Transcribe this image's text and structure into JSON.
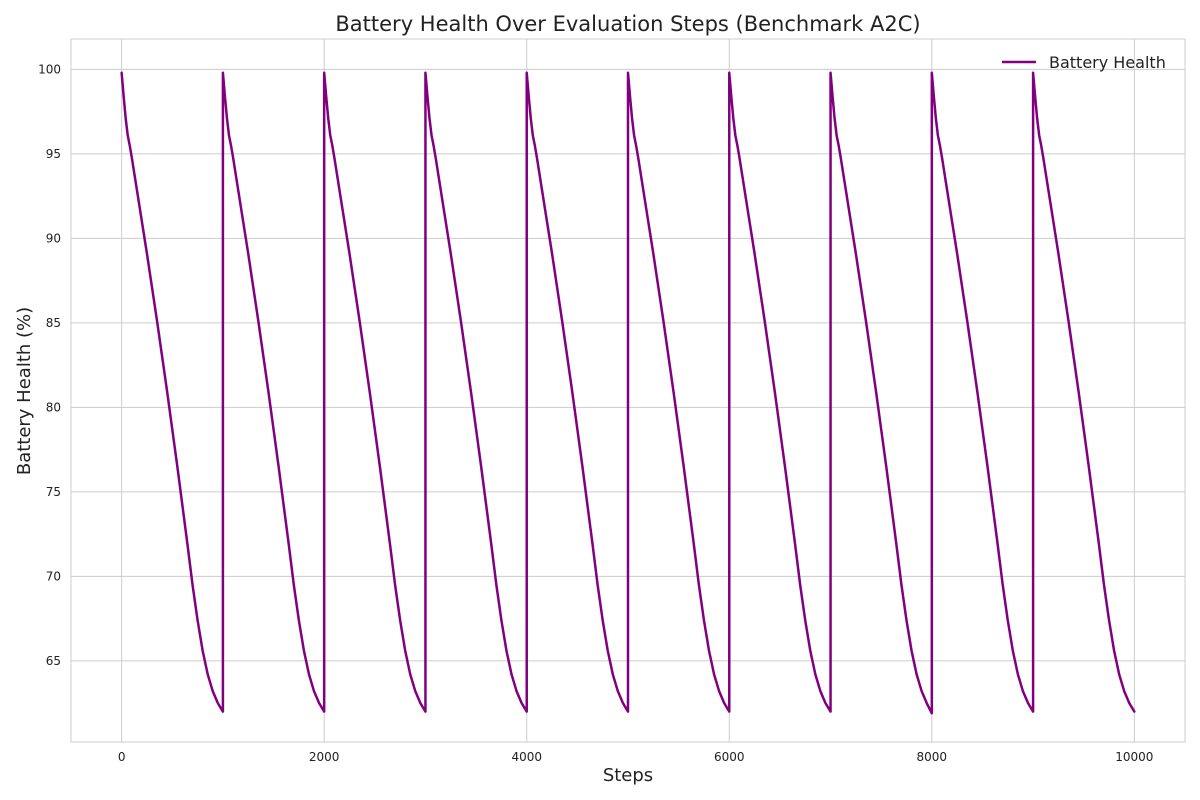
{
  "chart_data": {
    "type": "line",
    "title": "Battery Health Over Evaluation Steps (Benchmark A2C)",
    "xlabel": "Steps",
    "ylabel": "Battery Health (%)",
    "xlim": [
      -500,
      10500
    ],
    "ylim": [
      60.2,
      101.8
    ],
    "xticks": [
      0,
      2000,
      4000,
      6000,
      8000,
      10000
    ],
    "yticks": [
      65,
      70,
      75,
      80,
      85,
      90,
      95,
      100
    ],
    "grid": true,
    "legend_position": "top-right",
    "series": [
      {
        "name": "Battery Health",
        "color": "#800080",
        "x": [
          0,
          20,
          40,
          60,
          80,
          100,
          150,
          200,
          250,
          300,
          350,
          400,
          450,
          500,
          550,
          600,
          650,
          700,
          750,
          800,
          850,
          900,
          950,
          1000,
          1000,
          1020,
          1040,
          1060,
          1080,
          1100,
          1150,
          1200,
          1250,
          1300,
          1350,
          1400,
          1450,
          1500,
          1550,
          1600,
          1650,
          1700,
          1750,
          1800,
          1850,
          1900,
          1950,
          2000,
          2000,
          2020,
          2040,
          2060,
          2080,
          2100,
          2150,
          2200,
          2250,
          2300,
          2350,
          2400,
          2450,
          2500,
          2550,
          2600,
          2650,
          2700,
          2750,
          2800,
          2850,
          2900,
          2950,
          3000,
          3000,
          3020,
          3040,
          3060,
          3080,
          3100,
          3150,
          3200,
          3250,
          3300,
          3350,
          3400,
          3450,
          3500,
          3550,
          3600,
          3650,
          3700,
          3750,
          3800,
          3850,
          3900,
          3950,
          4000,
          4000,
          4020,
          4040,
          4060,
          4080,
          4100,
          4150,
          4200,
          4250,
          4300,
          4350,
          4400,
          4450,
          4500,
          4550,
          4600,
          4650,
          4700,
          4750,
          4800,
          4850,
          4900,
          4950,
          5000,
          5000,
          5020,
          5040,
          5060,
          5080,
          5100,
          5150,
          5200,
          5250,
          5300,
          5350,
          5400,
          5450,
          5500,
          5550,
          5600,
          5650,
          5700,
          5750,
          5800,
          5850,
          5900,
          5950,
          6000,
          6000,
          6020,
          6040,
          6060,
          6080,
          6100,
          6150,
          6200,
          6250,
          6300,
          6350,
          6400,
          6450,
          6500,
          6550,
          6600,
          6650,
          6700,
          6750,
          6800,
          6850,
          6900,
          6950,
          7000,
          7000,
          7020,
          7040,
          7060,
          7080,
          7100,
          7150,
          7200,
          7250,
          7300,
          7350,
          7400,
          7450,
          7500,
          7550,
          7600,
          7650,
          7700,
          7750,
          7800,
          7850,
          7900,
          7950,
          8000,
          8000,
          8020,
          8040,
          8060,
          8080,
          8100,
          8150,
          8200,
          8250,
          8300,
          8350,
          8400,
          8450,
          8500,
          8550,
          8600,
          8650,
          8700,
          8750,
          8800,
          8850,
          8900,
          8950,
          9000,
          9000,
          9020,
          9040,
          9060,
          9080,
          9100,
          9150,
          9200,
          9250,
          9300,
          9350,
          9400,
          9450,
          9500,
          9550,
          9600,
          9650,
          9700,
          9750,
          9800,
          9850,
          9900,
          9950,
          10000
        ],
        "y": [
          99.8,
          98.4,
          97.1,
          96.1,
          95.5,
          94.8,
          92.9,
          91.0,
          89.1,
          87.1,
          85.1,
          83.0,
          80.9,
          78.7,
          76.5,
          74.2,
          71.9,
          69.5,
          67.4,
          65.6,
          64.2,
          63.2,
          62.5,
          62.0,
          99.8,
          98.4,
          97.1,
          96.1,
          95.5,
          94.8,
          92.9,
          91.0,
          89.1,
          87.1,
          85.1,
          83.0,
          80.9,
          78.7,
          76.5,
          74.2,
          71.9,
          69.5,
          67.4,
          65.6,
          64.2,
          63.2,
          62.5,
          62.0,
          99.8,
          98.4,
          97.1,
          96.1,
          95.5,
          94.8,
          92.9,
          91.0,
          89.1,
          87.1,
          85.1,
          83.0,
          80.9,
          78.7,
          76.5,
          74.2,
          71.9,
          69.5,
          67.4,
          65.6,
          64.2,
          63.2,
          62.5,
          62.0,
          99.8,
          98.4,
          97.1,
          96.1,
          95.5,
          94.8,
          92.9,
          91.0,
          89.1,
          87.1,
          85.1,
          83.0,
          80.9,
          78.7,
          76.5,
          74.2,
          71.9,
          69.5,
          67.4,
          65.6,
          64.2,
          63.2,
          62.5,
          62.0,
          99.8,
          98.4,
          97.1,
          96.1,
          95.5,
          94.8,
          92.9,
          91.0,
          89.1,
          87.1,
          85.1,
          83.0,
          80.9,
          78.7,
          76.5,
          74.2,
          71.9,
          69.5,
          67.4,
          65.6,
          64.2,
          63.2,
          62.5,
          62.0,
          99.8,
          98.4,
          97.1,
          96.1,
          95.5,
          94.8,
          92.9,
          91.0,
          89.1,
          87.1,
          85.1,
          83.0,
          80.9,
          78.7,
          76.5,
          74.2,
          71.9,
          69.5,
          67.4,
          65.6,
          64.2,
          63.2,
          62.5,
          62.0,
          99.8,
          98.4,
          97.1,
          96.1,
          95.5,
          94.8,
          92.9,
          91.0,
          89.1,
          87.1,
          85.1,
          83.0,
          80.9,
          78.7,
          76.5,
          74.2,
          71.9,
          69.5,
          67.4,
          65.6,
          64.2,
          63.2,
          62.5,
          62.0,
          99.8,
          98.4,
          97.1,
          96.1,
          95.5,
          94.8,
          92.9,
          91.0,
          89.1,
          87.1,
          85.1,
          83.0,
          80.9,
          78.7,
          76.5,
          74.2,
          71.9,
          69.5,
          67.4,
          65.6,
          64.2,
          63.2,
          62.5,
          61.9,
          99.8,
          98.4,
          97.1,
          96.1,
          95.5,
          94.8,
          92.9,
          91.0,
          89.1,
          87.1,
          85.1,
          83.0,
          80.9,
          78.7,
          76.5,
          74.2,
          71.9,
          69.5,
          67.4,
          65.6,
          64.2,
          63.2,
          62.5,
          62.0,
          99.8,
          98.4,
          97.1,
          96.1,
          95.5,
          94.8,
          92.9,
          91.0,
          89.1,
          87.1,
          85.1,
          83.0,
          80.9,
          78.7,
          76.5,
          74.2,
          71.9,
          69.5,
          67.4,
          65.6,
          64.2,
          63.2,
          62.5,
          62.0
        ]
      }
    ]
  }
}
